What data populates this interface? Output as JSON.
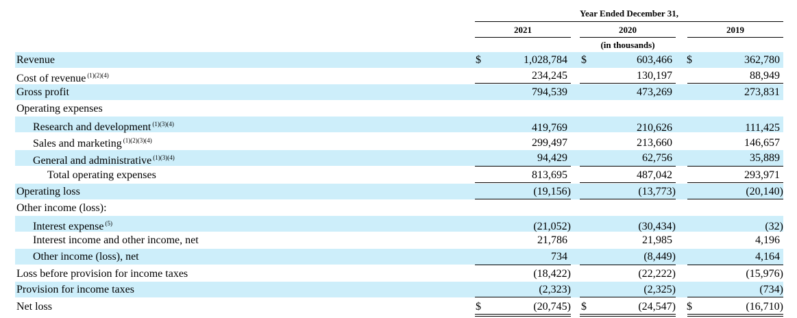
{
  "header": {
    "period": "Year Ended December 31,",
    "years": [
      "2021",
      "2020",
      "2019"
    ],
    "units": "(in thousands)"
  },
  "rows": [
    {
      "label": "Revenue",
      "note": "",
      "values": [
        "1,028,784",
        "603,466",
        "362,780"
      ],
      "currency": [
        "$",
        "$",
        "$"
      ]
    },
    {
      "label": "Cost of revenue",
      "note": "(1)(2)(4)",
      "values": [
        "234,245",
        "130,197",
        "88,949"
      ],
      "currency": [
        "",
        "",
        ""
      ]
    },
    {
      "label": "Gross profit",
      "note": "",
      "values": [
        "794,539",
        "473,269",
        "273,831"
      ],
      "currency": [
        "",
        "",
        ""
      ]
    },
    {
      "label": "Operating expenses",
      "note": "",
      "values": [
        "",
        "",
        ""
      ],
      "currency": [
        "",
        "",
        ""
      ]
    },
    {
      "label": "Research and development",
      "note": "(1)(3)(4)",
      "values": [
        "419,769",
        "210,626",
        "111,425"
      ],
      "currency": [
        "",
        "",
        ""
      ]
    },
    {
      "label": "Sales and marketing",
      "note": "(1)(2)(3)(4)",
      "values": [
        "299,497",
        "213,660",
        "146,657"
      ],
      "currency": [
        "",
        "",
        ""
      ]
    },
    {
      "label": "General and administrative",
      "note": "(1)(3)(4)",
      "values": [
        "94,429",
        "62,756",
        "35,889"
      ],
      "currency": [
        "",
        "",
        ""
      ]
    },
    {
      "label": "Total operating expenses",
      "note": "",
      "values": [
        "813,695",
        "487,042",
        "293,971"
      ],
      "currency": [
        "",
        "",
        ""
      ]
    },
    {
      "label": "Operating loss",
      "note": "",
      "values": [
        "(19,156)",
        "(13,773)",
        "(20,140)"
      ],
      "currency": [
        "",
        "",
        ""
      ]
    },
    {
      "label": "Other income (loss):",
      "note": "",
      "values": [
        "",
        "",
        ""
      ],
      "currency": [
        "",
        "",
        ""
      ]
    },
    {
      "label": "Interest expense",
      "note": "(5)",
      "values": [
        "(21,052)",
        "(30,434)",
        "(32)"
      ],
      "currency": [
        "",
        "",
        ""
      ]
    },
    {
      "label": "Interest income and other income, net",
      "note": "",
      "values": [
        "21,786",
        "21,985",
        "4,196"
      ],
      "currency": [
        "",
        "",
        ""
      ]
    },
    {
      "label": "Other income (loss), net",
      "note": "",
      "values": [
        "734",
        "(8,449)",
        "4,164"
      ],
      "currency": [
        "",
        "",
        ""
      ]
    },
    {
      "label": "Loss before provision for income taxes",
      "note": "",
      "values": [
        "(18,422)",
        "(22,222)",
        "(15,976)"
      ],
      "currency": [
        "",
        "",
        ""
      ]
    },
    {
      "label": "Provision for income taxes",
      "note": "",
      "values": [
        "(2,323)",
        "(2,325)",
        "(734)"
      ],
      "currency": [
        "",
        "",
        ""
      ]
    },
    {
      "label": "Net loss",
      "note": "",
      "values": [
        "(20,745)",
        "(24,547)",
        "(16,710)"
      ],
      "currency": [
        "$",
        "$",
        "$"
      ]
    }
  ]
}
